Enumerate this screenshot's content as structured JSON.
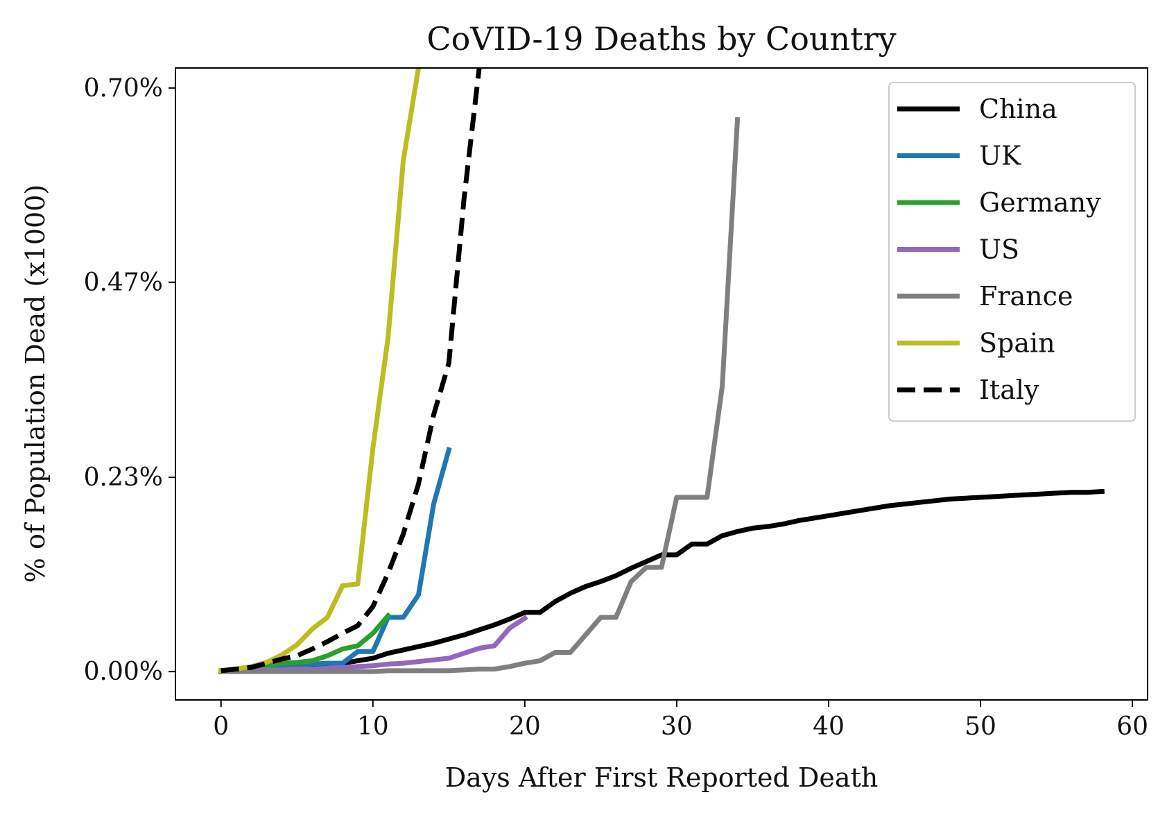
{
  "chart_data": {
    "type": "line",
    "title": "CoVID-19 Deaths by Country",
    "xlabel": "Days After First Reported Death",
    "ylabel": "% of Population Dead (x1000)",
    "xlim": [
      -3,
      61
    ],
    "ylim": [
      -0.034,
      0.724
    ],
    "x_ticks": [
      0,
      10,
      20,
      30,
      40,
      50,
      60
    ],
    "x_tick_labels": [
      "0",
      "10",
      "20",
      "30",
      "40",
      "50",
      "60"
    ],
    "y_ticks": [
      0.0,
      0.233,
      0.467,
      0.7
    ],
    "y_tick_labels": [
      "0.00%",
      "0.23%",
      "0.47%",
      "0.70%"
    ],
    "grid": false,
    "legend_position": "top-right",
    "series": [
      {
        "name": "China",
        "color": "#000000",
        "dashed": false,
        "x": [
          0,
          1,
          2,
          3,
          4,
          5,
          6,
          7,
          8,
          9,
          10,
          11,
          12,
          13,
          14,
          15,
          16,
          17,
          18,
          19,
          20,
          21,
          22,
          23,
          24,
          25,
          26,
          27,
          28,
          29,
          30,
          31,
          32,
          33,
          34,
          35,
          36,
          37,
          38,
          39,
          40,
          41,
          42,
          43,
          44,
          45,
          46,
          47,
          48,
          49,
          50,
          51,
          52,
          53,
          54,
          55,
          56,
          57,
          58
        ],
        "y": [
          0.001,
          0.002,
          0.003,
          0.004,
          0.005,
          0.006,
          0.007,
          0.008,
          0.01,
          0.013,
          0.016,
          0.022,
          0.026,
          0.03,
          0.034,
          0.039,
          0.044,
          0.05,
          0.056,
          0.063,
          0.071,
          0.071,
          0.084,
          0.094,
          0.102,
          0.108,
          0.115,
          0.124,
          0.132,
          0.14,
          0.14,
          0.153,
          0.153,
          0.163,
          0.168,
          0.172,
          0.174,
          0.177,
          0.181,
          0.184,
          0.187,
          0.19,
          0.193,
          0.196,
          0.199,
          0.201,
          0.203,
          0.205,
          0.207,
          0.208,
          0.209,
          0.21,
          0.211,
          0.212,
          0.213,
          0.214,
          0.215,
          0.215,
          0.216
        ]
      },
      {
        "name": "UK",
        "color": "#1f77b4",
        "dashed": false,
        "x": [
          0,
          1,
          2,
          3,
          4,
          5,
          6,
          7,
          8,
          9,
          10,
          11,
          12,
          13,
          14,
          15
        ],
        "y": [
          0.0,
          0.001,
          0.002,
          0.004,
          0.006,
          0.008,
          0.009,
          0.01,
          0.01,
          0.024,
          0.024,
          0.065,
          0.065,
          0.092,
          0.201,
          0.266
        ]
      },
      {
        "name": "Germany",
        "color": "#2ca02c",
        "dashed": false,
        "x": [
          0,
          1,
          2,
          3,
          4,
          5,
          6,
          7,
          8,
          9,
          10,
          11
        ],
        "y": [
          0.0,
          0.002,
          0.004,
          0.007,
          0.01,
          0.011,
          0.013,
          0.019,
          0.027,
          0.031,
          0.046,
          0.067
        ]
      },
      {
        "name": "US",
        "color": "#9467bd",
        "dashed": false,
        "x": [
          0,
          1,
          2,
          3,
          4,
          5,
          6,
          7,
          8,
          9,
          10,
          11,
          12,
          13,
          14,
          15,
          16,
          17,
          18,
          19,
          20
        ],
        "y": [
          0.0,
          0.0,
          0.001,
          0.002,
          0.002,
          0.003,
          0.003,
          0.004,
          0.005,
          0.006,
          0.007,
          0.009,
          0.01,
          0.012,
          0.014,
          0.016,
          0.022,
          0.028,
          0.031,
          0.052,
          0.064
        ]
      },
      {
        "name": "France",
        "color": "#7f7f7f",
        "dashed": false,
        "x": [
          0,
          1,
          2,
          3,
          4,
          5,
          6,
          7,
          8,
          9,
          10,
          11,
          12,
          13,
          14,
          15,
          16,
          17,
          18,
          19,
          20,
          21,
          22,
          23,
          24,
          25,
          26,
          27,
          28,
          29,
          30,
          31,
          32,
          33,
          34
        ],
        "y": [
          0.0,
          0.0,
          0.0,
          0.0,
          0.0,
          0.0,
          0.0,
          0.0,
          0.0,
          0.0,
          0.0,
          0.001,
          0.001,
          0.001,
          0.001,
          0.001,
          0.002,
          0.003,
          0.003,
          0.006,
          0.01,
          0.013,
          0.023,
          0.023,
          0.044,
          0.065,
          0.065,
          0.108,
          0.125,
          0.125,
          0.209,
          0.209,
          0.209,
          0.342,
          0.662
        ]
      },
      {
        "name": "Spain",
        "color": "#bcbd22",
        "dashed": false,
        "x": [
          0,
          1,
          2,
          3,
          4,
          5,
          6,
          7,
          8,
          9,
          10,
          11,
          12,
          13
        ],
        "y": [
          0.001,
          0.003,
          0.006,
          0.011,
          0.02,
          0.032,
          0.051,
          0.065,
          0.103,
          0.105,
          0.268,
          0.401,
          0.613,
          0.724
        ]
      },
      {
        "name": "Italy",
        "color": "#000000",
        "dashed": true,
        "x": [
          0,
          1,
          2,
          3,
          4,
          5,
          6,
          7,
          8,
          9,
          10,
          11,
          12,
          13,
          14,
          15,
          16,
          17
        ],
        "y": [
          0.001,
          0.003,
          0.005,
          0.01,
          0.015,
          0.019,
          0.027,
          0.036,
          0.046,
          0.055,
          0.078,
          0.118,
          0.165,
          0.225,
          0.308,
          0.37,
          0.567,
          0.724
        ]
      }
    ]
  }
}
